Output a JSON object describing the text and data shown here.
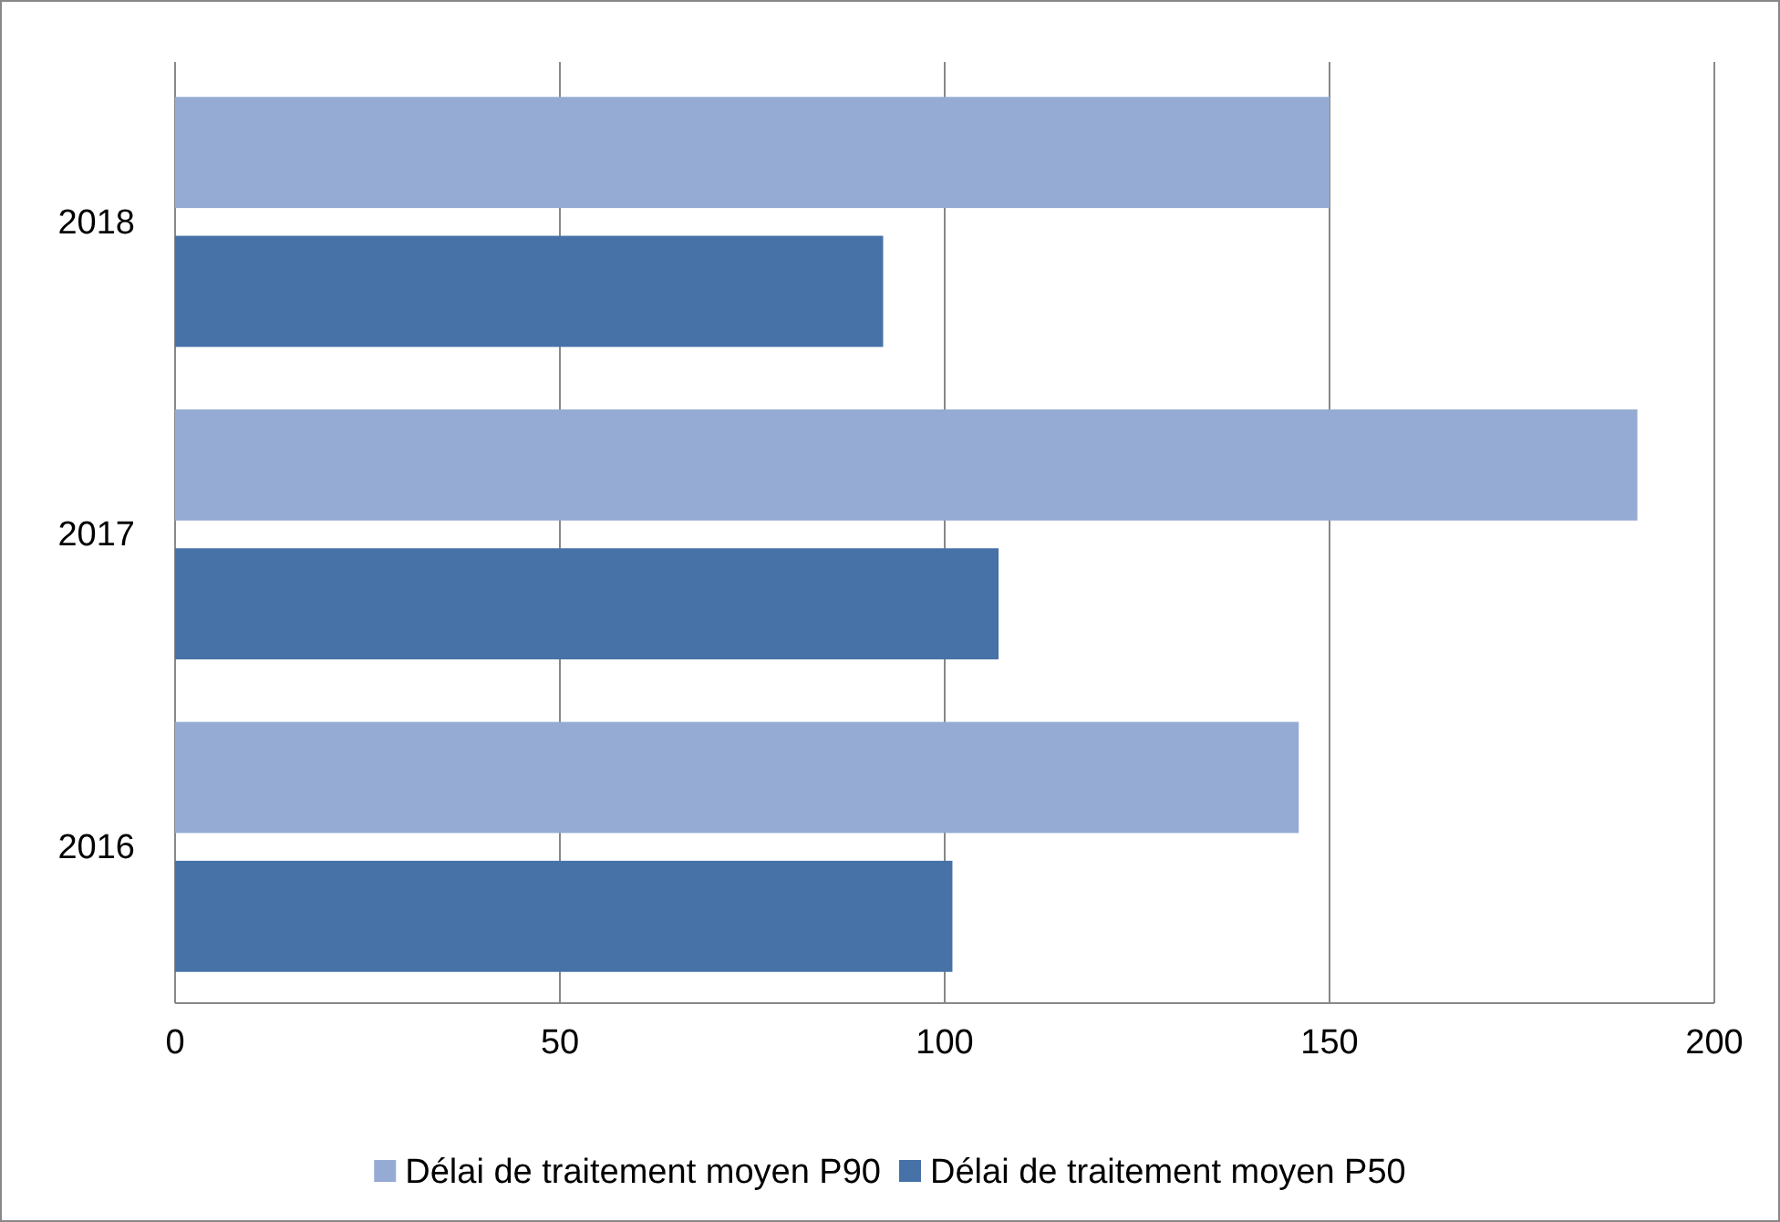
{
  "chart_data": {
    "type": "bar",
    "orientation": "horizontal",
    "categories": [
      "2018",
      "2017",
      "2016"
    ],
    "series": [
      {
        "name": "Délai de traitement moyen P90",
        "color": "#95abd3",
        "values": [
          150,
          190,
          146
        ]
      },
      {
        "name": "Délai de traitement moyen P50",
        "color": "#4672a8",
        "values": [
          92,
          107,
          101
        ]
      }
    ],
    "xlim": [
      0,
      200
    ],
    "xticks": [
      0,
      50,
      100,
      150,
      200
    ],
    "grid": "x",
    "legend": "bottom"
  }
}
